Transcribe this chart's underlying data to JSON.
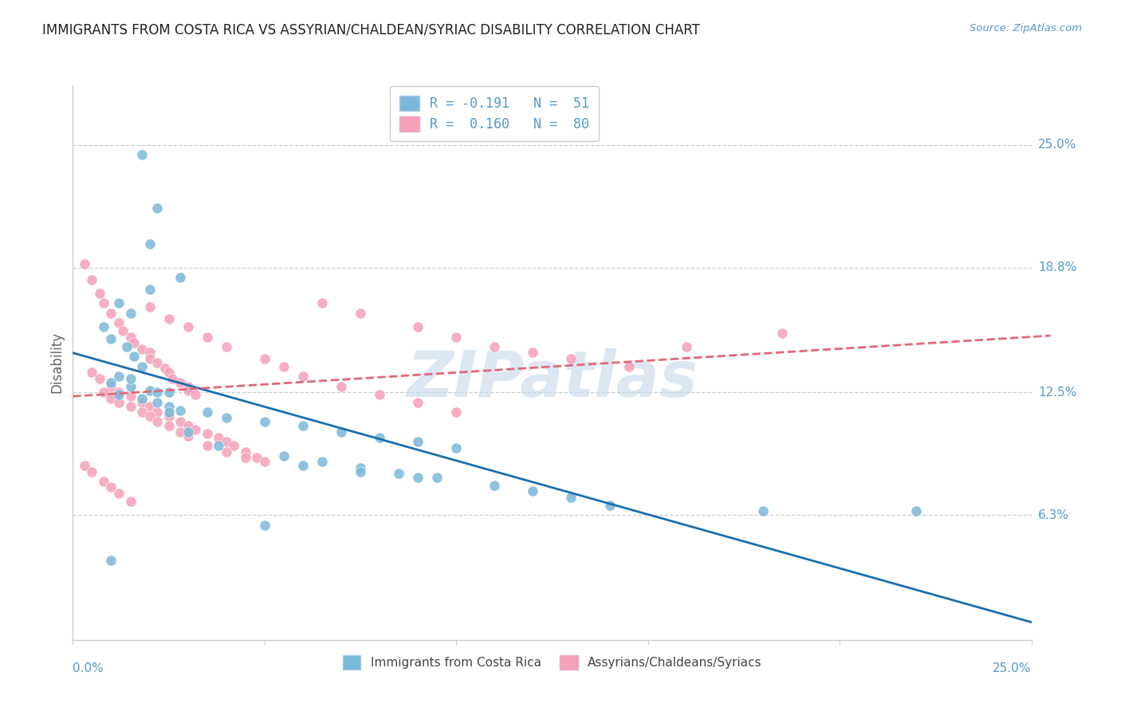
{
  "title": "IMMIGRANTS FROM COSTA RICA VS ASSYRIAN/CHALDEAN/SYRIAC DISABILITY CORRELATION CHART",
  "source": "Source: ZipAtlas.com",
  "ylabel": "Disability",
  "right_ytick_labels": [
    "25.0%",
    "18.8%",
    "12.5%",
    "6.3%"
  ],
  "right_ytick_values": [
    0.25,
    0.188,
    0.125,
    0.063
  ],
  "xmin": 0.0,
  "xmax": 0.25,
  "ymin": 0.0,
  "ymax": 0.28,
  "blue_color": "#7ab8d9",
  "pink_color": "#f4a0b8",
  "trend_blue": "#1a6faf",
  "trend_pink": "#e06878",
  "watermark": "ZIPatlas",
  "watermark_color": "#c5d8ea",
  "title_color": "#222222",
  "axis_label_color": "#5599cc",
  "ylabel_color": "#666666",
  "grid_color": "#cccccc",
  "blue_scatter_x": [
    0.018,
    0.022,
    0.02,
    0.028,
    0.02,
    0.012,
    0.015,
    0.008,
    0.01,
    0.014,
    0.016,
    0.018,
    0.012,
    0.01,
    0.015,
    0.02,
    0.025,
    0.012,
    0.018,
    0.022,
    0.025,
    0.028,
    0.035,
    0.04,
    0.05,
    0.06,
    0.07,
    0.08,
    0.09,
    0.1,
    0.055,
    0.065,
    0.075,
    0.085,
    0.095,
    0.11,
    0.12,
    0.13,
    0.14,
    0.06,
    0.075,
    0.09,
    0.18,
    0.22,
    0.05,
    0.038,
    0.03,
    0.025,
    0.022,
    0.015,
    0.01
  ],
  "blue_scatter_y": [
    0.245,
    0.218,
    0.2,
    0.183,
    0.177,
    0.17,
    0.165,
    0.158,
    0.152,
    0.148,
    0.143,
    0.138,
    0.133,
    0.13,
    0.128,
    0.126,
    0.125,
    0.124,
    0.122,
    0.12,
    0.118,
    0.116,
    0.115,
    0.112,
    0.11,
    0.108,
    0.105,
    0.102,
    0.1,
    0.097,
    0.093,
    0.09,
    0.087,
    0.084,
    0.082,
    0.078,
    0.075,
    0.072,
    0.068,
    0.088,
    0.085,
    0.082,
    0.065,
    0.065,
    0.058,
    0.098,
    0.105,
    0.115,
    0.125,
    0.132,
    0.04
  ],
  "pink_scatter_x": [
    0.003,
    0.005,
    0.007,
    0.008,
    0.01,
    0.012,
    0.013,
    0.015,
    0.016,
    0.018,
    0.02,
    0.02,
    0.022,
    0.024,
    0.025,
    0.026,
    0.028,
    0.03,
    0.03,
    0.032,
    0.005,
    0.007,
    0.01,
    0.012,
    0.015,
    0.018,
    0.02,
    0.022,
    0.025,
    0.028,
    0.03,
    0.032,
    0.035,
    0.038,
    0.04,
    0.042,
    0.045,
    0.048,
    0.05,
    0.008,
    0.01,
    0.012,
    0.015,
    0.018,
    0.02,
    0.022,
    0.025,
    0.028,
    0.03,
    0.035,
    0.04,
    0.045,
    0.003,
    0.005,
    0.008,
    0.01,
    0.012,
    0.015,
    0.065,
    0.075,
    0.09,
    0.1,
    0.11,
    0.12,
    0.13,
    0.145,
    0.16,
    0.185,
    0.02,
    0.025,
    0.03,
    0.035,
    0.04,
    0.05,
    0.055,
    0.06,
    0.07,
    0.08,
    0.09,
    0.1
  ],
  "pink_scatter_y": [
    0.19,
    0.182,
    0.175,
    0.17,
    0.165,
    0.16,
    0.156,
    0.153,
    0.15,
    0.147,
    0.145,
    0.142,
    0.14,
    0.137,
    0.135,
    0.132,
    0.13,
    0.128,
    0.126,
    0.124,
    0.135,
    0.132,
    0.128,
    0.125,
    0.123,
    0.12,
    0.118,
    0.115,
    0.113,
    0.11,
    0.108,
    0.106,
    0.104,
    0.102,
    0.1,
    0.098,
    0.095,
    0.092,
    0.09,
    0.125,
    0.122,
    0.12,
    0.118,
    0.115,
    0.113,
    0.11,
    0.108,
    0.105,
    0.103,
    0.098,
    0.095,
    0.092,
    0.088,
    0.085,
    0.08,
    0.077,
    0.074,
    0.07,
    0.17,
    0.165,
    0.158,
    0.153,
    0.148,
    0.145,
    0.142,
    0.138,
    0.148,
    0.155,
    0.168,
    0.162,
    0.158,
    0.153,
    0.148,
    0.142,
    0.138,
    0.133,
    0.128,
    0.124,
    0.12,
    0.115
  ]
}
